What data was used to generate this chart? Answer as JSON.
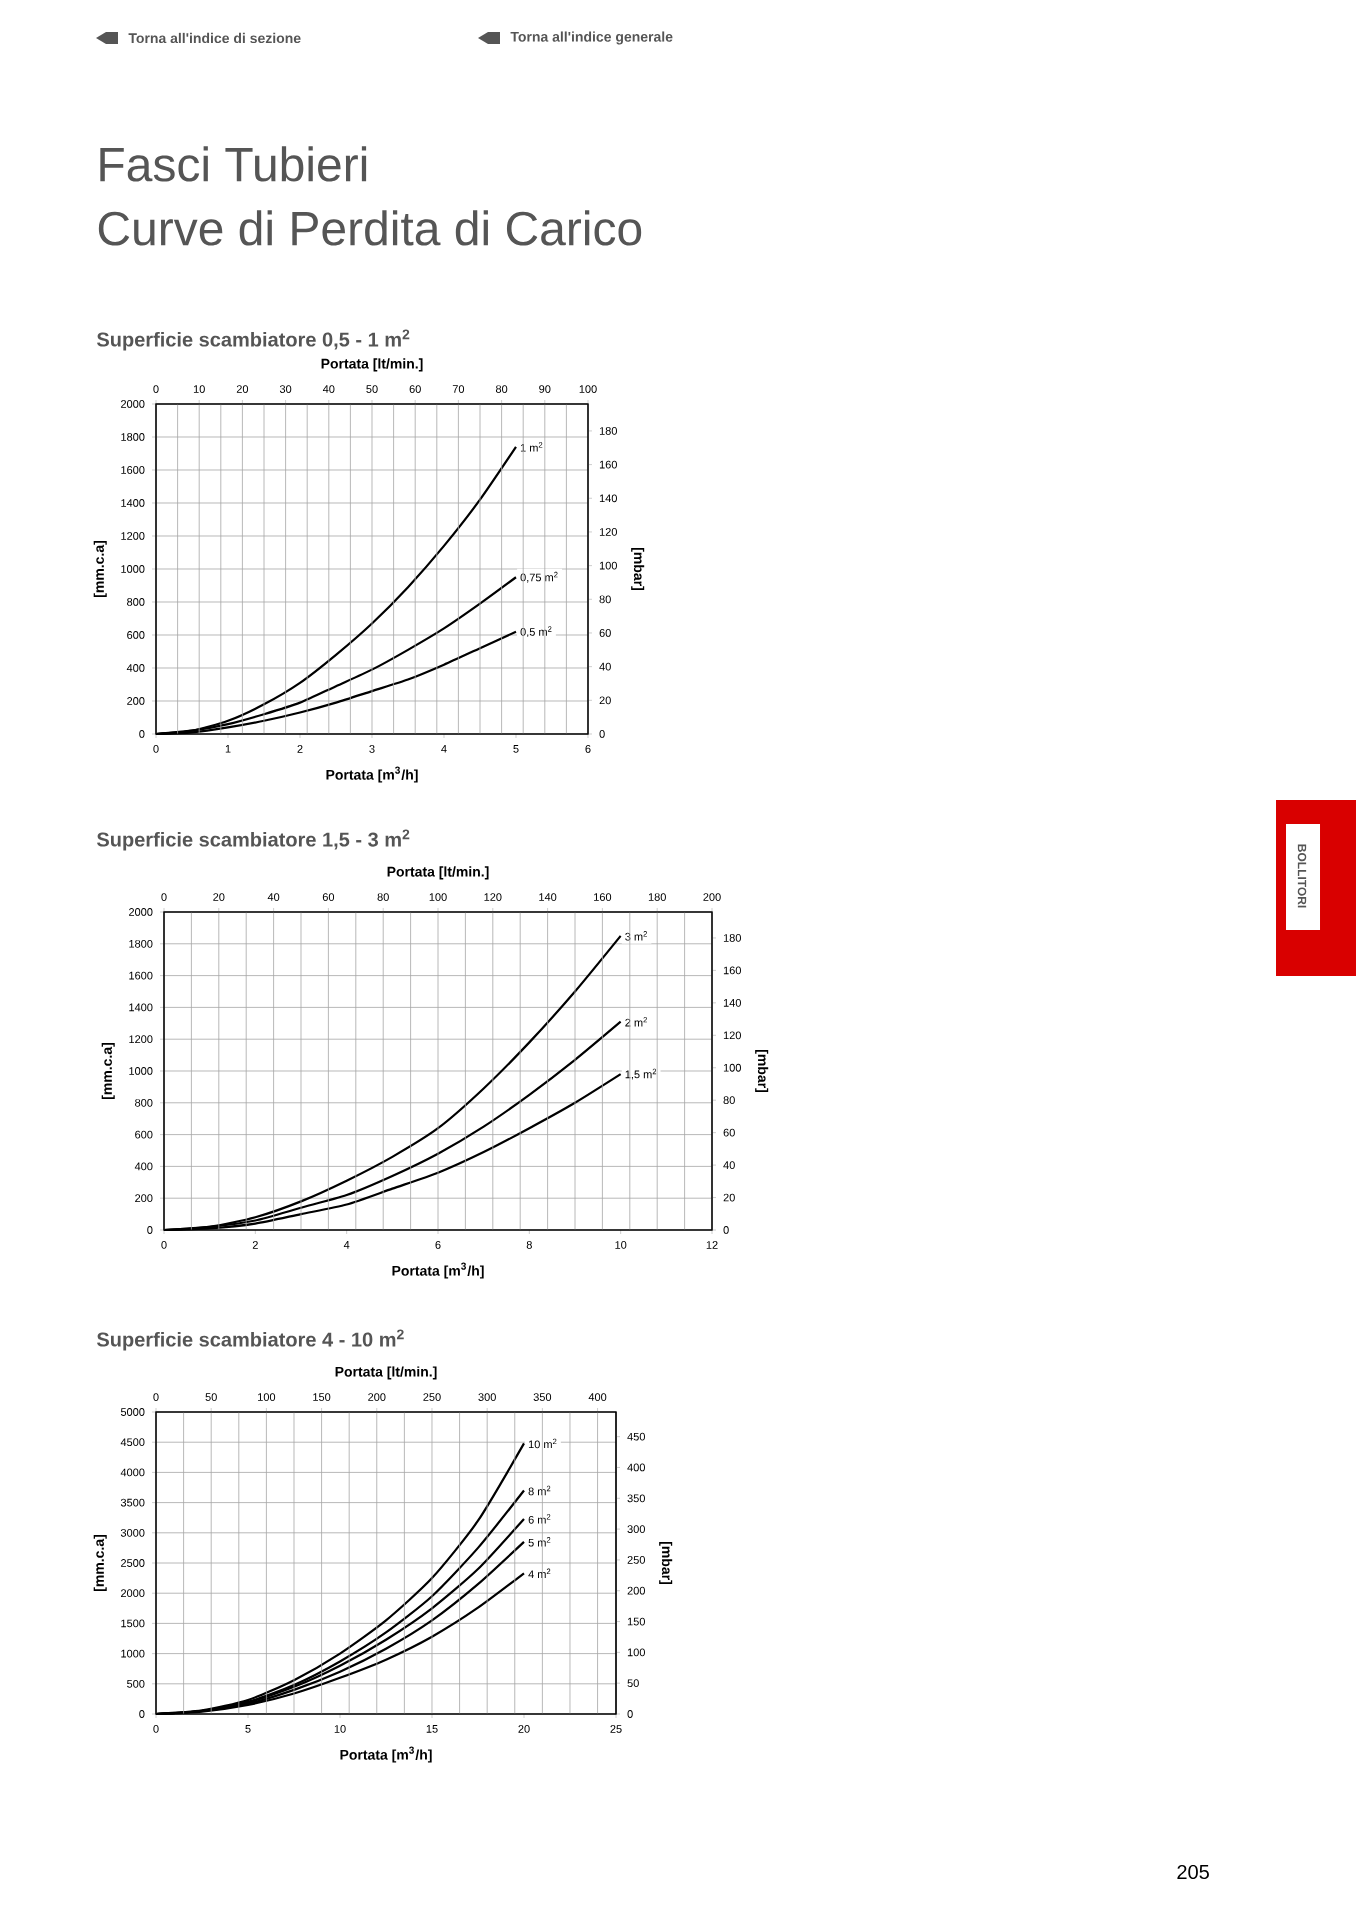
{
  "chart_data": [
    {
      "type": "line",
      "title": "Superficie scambiatore 0,5 - 1 m$^{2}$",
      "xlabel": "Portata [m$^{3}$/h]",
      "x2label": "Portata [lt/min.]",
      "ylabel": "[mm.c.a]",
      "y2label": "[mbar]",
      "annotations": [
        "Torna all'indice di sezione",
        "Torna all'indice generale",
        "Fasci Tubieri",
        "Curve di Perdita di Carico",
        "BOLLITORI",
        "205"
      ],
      "xlim": [
        0,
        6
      ],
      "xticks": [
        0,
        1,
        2,
        3,
        4,
        5,
        6
      ],
      "x2lim": [
        0,
        100
      ],
      "x2ticks": [
        0,
        10,
        20,
        30,
        40,
        50,
        60,
        70,
        80,
        90,
        100
      ],
      "ylim": [
        0,
        2000
      ],
      "yticks": [
        0,
        200,
        400,
        600,
        800,
        1000,
        1200,
        1400,
        1600,
        1800,
        2000
      ],
      "y2lim": [
        0,
        196
      ],
      "y2ticks": [
        0,
        20,
        40,
        60,
        80,
        100,
        120,
        140,
        160,
        180
      ],
      "grid": true,
      "marker": "none",
      "line_style": "solid",
      "series": [
        {
          "name": "1 m$^{2}$",
          "color": "#000000",
          "x": [
            0,
            0.5,
            1,
            1.5,
            2,
            2.5,
            3,
            3.5,
            4,
            4.5,
            5
          ],
          "values": [
            0,
            20,
            80,
            180,
            310,
            480,
            670,
            890,
            1140,
            1420,
            1740
          ]
        },
        {
          "name": "0,75 m$^{2}$",
          "color": "#000000",
          "x": [
            0,
            0.5,
            1,
            1.5,
            2,
            2.5,
            3,
            3.5,
            4,
            4.5,
            5
          ],
          "values": [
            0,
            20,
            60,
            120,
            190,
            290,
            390,
            510,
            640,
            790,
            950
          ]
        },
        {
          "name": "0,5 m$^{2}$",
          "color": "#000000",
          "x": [
            0,
            0.5,
            1,
            1.5,
            2,
            2.5,
            3,
            3.5,
            4,
            4.5,
            5
          ],
          "values": [
            0,
            10,
            40,
            80,
            130,
            190,
            260,
            330,
            420,
            520,
            620
          ]
        }
      ]
    },
    {
      "type": "line",
      "title": "Superficie scambiatore 1,5 - 3 m$^{2}$",
      "xlabel": "Portata [m$^{3}$/h]",
      "x2label": "Portata [lt/min.]",
      "ylabel": "[mm.c.a]",
      "y2label": "[mbar]",
      "xlim": [
        0,
        12
      ],
      "xticks": [
        0,
        2,
        4,
        6,
        8,
        10,
        12
      ],
      "x2lim": [
        0,
        200
      ],
      "x2ticks": [
        0,
        20,
        40,
        60,
        80,
        100,
        120,
        140,
        160,
        180,
        200
      ],
      "ylim": [
        0,
        2000
      ],
      "yticks": [
        0,
        200,
        400,
        600,
        800,
        1000,
        1200,
        1400,
        1600,
        1800,
        2000
      ],
      "y2lim": [
        0,
        196
      ],
      "y2ticks": [
        0,
        20,
        40,
        60,
        80,
        100,
        120,
        140,
        160,
        180
      ],
      "grid": true,
      "marker": "none",
      "line_style": "solid",
      "series": [
        {
          "name": "3 m$^{2}$",
          "color": "#000000",
          "x": [
            0,
            1,
            2,
            3,
            4,
            5,
            6,
            7,
            8,
            9,
            10
          ],
          "values": [
            0,
            20,
            80,
            180,
            310,
            460,
            640,
            890,
            1180,
            1500,
            1850
          ]
        },
        {
          "name": "2 m$^{2}$",
          "color": "#000000",
          "x": [
            0,
            1,
            2,
            3,
            4,
            5,
            6,
            7,
            8,
            9,
            10
          ],
          "values": [
            0,
            20,
            60,
            140,
            220,
            340,
            480,
            650,
            850,
            1070,
            1310
          ]
        },
        {
          "name": "1,5 m$^{2}$",
          "color": "#000000",
          "x": [
            0,
            1,
            2,
            3,
            4,
            5,
            6,
            7,
            8,
            9,
            10
          ],
          "values": [
            0,
            10,
            40,
            100,
            160,
            260,
            360,
            490,
            640,
            800,
            980
          ]
        }
      ]
    },
    {
      "type": "line",
      "title": "Superficie scambiatore 4 - 10 m$^{2}$",
      "xlabel": "Portata [m$^{3}$/h]",
      "x2label": "Portata [lt/min.]",
      "ylabel": "[mm.c.a]",
      "y2label": "[mbar]",
      "xlim": [
        0,
        25
      ],
      "xticks": [
        0,
        5,
        10,
        15,
        20,
        25
      ],
      "x2lim": [
        0,
        416.7
      ],
      "x2ticks": [
        0,
        50,
        100,
        150,
        200,
        250,
        300,
        350,
        400
      ],
      "ylim": [
        0,
        5000
      ],
      "yticks": [
        0,
        500,
        1000,
        1500,
        2000,
        2500,
        3000,
        3500,
        4000,
        4500,
        5000
      ],
      "y2lim": [
        0,
        490
      ],
      "y2ticks": [
        0,
        50,
        100,
        150,
        200,
        250,
        300,
        350,
        400,
        450
      ],
      "grid": true,
      "marker": "none",
      "line_style": "solid",
      "series": [
        {
          "name": "10 m$^{2}$",
          "color": "#000000",
          "x": [
            0,
            2.5,
            5,
            7.5,
            10,
            12.5,
            15,
            17.5,
            20
          ],
          "values": [
            0,
            60,
            230,
            560,
            1000,
            1550,
            2250,
            3200,
            4480
          ]
        },
        {
          "name": "8 m$^{2}$",
          "color": "#000000",
          "x": [
            0,
            2.5,
            5,
            7.5,
            10,
            12.5,
            15,
            17.5,
            20
          ],
          "values": [
            0,
            50,
            200,
            480,
            870,
            1350,
            1950,
            2750,
            3700
          ]
        },
        {
          "name": "6 m$^{2}$",
          "color": "#000000",
          "x": [
            0,
            2.5,
            5,
            7.5,
            10,
            12.5,
            15,
            17.5,
            20
          ],
          "values": [
            0,
            50,
            190,
            450,
            800,
            1230,
            1750,
            2400,
            3230
          ]
        },
        {
          "name": "5 m$^{2}$",
          "color": "#000000",
          "x": [
            0,
            2.5,
            5,
            7.5,
            10,
            12.5,
            15,
            17.5,
            20
          ],
          "values": [
            0,
            50,
            170,
            400,
            700,
            1080,
            1550,
            2150,
            2850
          ]
        },
        {
          "name": "4 m$^{2}$",
          "color": "#000000",
          "x": [
            0,
            2.5,
            5,
            7.5,
            10,
            12.5,
            15,
            17.5,
            20
          ],
          "values": [
            0,
            40,
            150,
            340,
            600,
            900,
            1280,
            1760,
            2330
          ]
        }
      ]
    }
  ]
}
